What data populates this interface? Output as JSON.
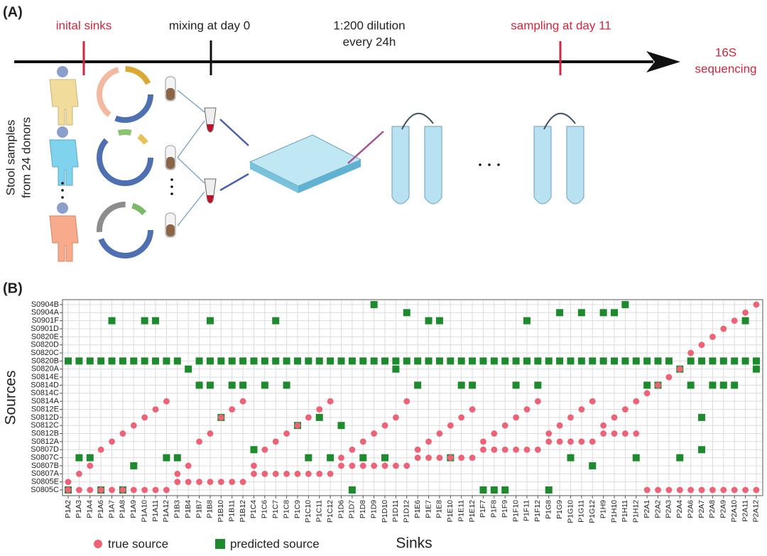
{
  "panel_a": {
    "label": "(A)",
    "steps": [
      "inital sinks",
      "mixing at day 0",
      "1:200 dilution",
      "every 24h",
      "sampling at day 11"
    ],
    "end": [
      "16S",
      "sequencing"
    ],
    "side": [
      "Stool samples",
      "from 24 donors"
    ]
  },
  "chart_data": {
    "type": "scatter",
    "label": "(B)",
    "x_label": "Sinks",
    "y_label": "Sources",
    "grid": true,
    "legend": "bottom",
    "categories": [
      "P1A2",
      "P1A3",
      "P1A4",
      "P1A6",
      "P1A7",
      "P1A8",
      "P1A9",
      "P1A10",
      "P1A11",
      "P1A12",
      "P1B3",
      "P1B4",
      "P1B7",
      "P1B8",
      "P1B10",
      "P1B11",
      "P1B12",
      "P1C4",
      "P1C6",
      "P1C7",
      "P1C8",
      "P1C9",
      "P1C10",
      "P1C11",
      "P1C12",
      "P1D6",
      "P1D7",
      "P1D8",
      "P1D9",
      "P1D10",
      "P1D11",
      "P1D12",
      "P1E6",
      "P1E7",
      "P1E8",
      "P1E10",
      "P1E11",
      "P1E12",
      "P1F7",
      "P1F8",
      "P1F9",
      "P1F10",
      "P1F11",
      "P1F12",
      "P1G8",
      "P1G9",
      "P1G10",
      "P1G11",
      "P1G12",
      "P1H9",
      "P1H10",
      "P1H11",
      "P1H12",
      "P2A1",
      "P2A2",
      "P2A3",
      "P2A4",
      "P2A6",
      "P2A7",
      "P2A8",
      "P2A9",
      "P2A10",
      "P2A11",
      "P2A12"
    ],
    "y_categories": [
      "S0805C",
      "S0805E",
      "S0807A",
      "S0807B",
      "S0807C",
      "S0807D",
      "S0812A",
      "S0812B",
      "S0812C",
      "S0812D",
      "S0812E",
      "S0814A",
      "S0814C",
      "S0814D",
      "S0814E",
      "S0820A",
      "S0820B",
      "S0820C",
      "S0820D",
      "S0820E",
      "S0901D",
      "S0901F",
      "S0904A",
      "S0904B"
    ],
    "series": [
      {
        "name": "true source",
        "color": "#ec6378",
        "marker": "circle",
        "values": [
          [
            "S0805C",
            "S0805E"
          ],
          [
            "S0805C",
            "S0807A"
          ],
          [
            "S0805C",
            "S0807B"
          ],
          [
            "S0805C",
            "S0807D"
          ],
          [
            "S0805C",
            "S0812A"
          ],
          [
            "S0805C",
            "S0812B"
          ],
          [
            "S0805C",
            "S0812C"
          ],
          [
            "S0805C",
            "S0812D"
          ],
          [
            "S0805C",
            "S0812E"
          ],
          [
            "S0805C",
            "S0814A"
          ],
          [
            "S0805E",
            "S0807A"
          ],
          [
            "S0805E",
            "S0807B"
          ],
          [
            "S0805E",
            "S0812A"
          ],
          [
            "S0805E",
            "S0812B"
          ],
          [
            "S0805E",
            "S0812D"
          ],
          [
            "S0805E",
            "S0812E"
          ],
          [
            "S0805E",
            "S0814A"
          ],
          [
            "S0807A",
            "S0807B"
          ],
          [
            "S0807A",
            "S0807D"
          ],
          [
            "S0807A",
            "S0812A"
          ],
          [
            "S0807A",
            "S0812B"
          ],
          [
            "S0807A",
            "S0812C"
          ],
          [
            "S0807A",
            "S0812D"
          ],
          [
            "S0807A",
            "S0812E"
          ],
          [
            "S0807A",
            "S0814A"
          ],
          [
            "S0807B",
            "S0807C"
          ],
          [
            "S0807B",
            "S0807D"
          ],
          [
            "S0807B",
            "S0812A"
          ],
          [
            "S0807B",
            "S0812B"
          ],
          [
            "S0807B",
            "S0812C"
          ],
          [
            "S0807B",
            "S0812D"
          ],
          [
            "S0807B",
            "S0814A"
          ],
          [
            "S0807C",
            "S0807D"
          ],
          [
            "S0807C",
            "S0812A"
          ],
          [
            "S0807C",
            "S0812B"
          ],
          [
            "S0807C",
            "S0812C"
          ],
          [
            "S0807C",
            "S0812D"
          ],
          [
            "S0807C",
            "S0812E"
          ],
          [
            "S0807D",
            "S0812A"
          ],
          [
            "S0807D",
            "S0812B"
          ],
          [
            "S0807D",
            "S0812C"
          ],
          [
            "S0807D",
            "S0812D"
          ],
          [
            "S0807D",
            "S0812E"
          ],
          [
            "S0807D",
            "S0814A"
          ],
          [
            "S0812A",
            "S0812B"
          ],
          [
            "S0812A",
            "S0812C"
          ],
          [
            "S0812A",
            "S0812D"
          ],
          [
            "S0812A",
            "S0812E"
          ],
          [
            "S0812A",
            "S0814A"
          ],
          [
            "S0812B",
            "S0812C"
          ],
          [
            "S0812B",
            "S0812D"
          ],
          [
            "S0812B",
            "S0812E"
          ],
          [
            "S0812B",
            "S0814A"
          ],
          [
            "S0805C",
            "S0814C"
          ],
          [
            "S0805C",
            "S0814D"
          ],
          [
            "S0805C",
            "S0814E"
          ],
          [
            "S0805C",
            "S0820A"
          ],
          [
            "S0805C",
            "S0820C"
          ],
          [
            "S0805C",
            "S0820D"
          ],
          [
            "S0805C",
            "S0820E"
          ],
          [
            "S0805C",
            "S0901D"
          ],
          [
            "S0805C",
            "S0901F"
          ],
          [
            "S0805C",
            "S0904A"
          ],
          [
            "S0805C",
            "S0904B"
          ]
        ]
      },
      {
        "name": "predicted source",
        "color": "#1e8a2e",
        "marker": "square",
        "values": [
          [
            "S0805C",
            "S0820B"
          ],
          [
            "S0807C",
            "S0820B"
          ],
          [
            "S0807C",
            "S0820B"
          ],
          [
            "S0805C",
            "S0820B"
          ],
          [
            "S0901F",
            "S0820B"
          ],
          [
            "S0805C",
            "S0820B"
          ],
          [
            "S0807B",
            "S0820B"
          ],
          [
            "S0901F",
            "S0820B"
          ],
          [
            "S0901F",
            "S0820B"
          ],
          [
            "S0807C",
            "S0820B"
          ],
          [
            "S0807C",
            "S0820B"
          ],
          [
            "S0820A"
          ],
          [
            "S0814D",
            "S0820B"
          ],
          [
            "S0901F",
            "S0814D",
            "S0820B"
          ],
          [
            "S0812D",
            "S0820B"
          ],
          [
            "S0814D",
            "S0820B"
          ],
          [
            "S0814D",
            "S0820B"
          ],
          [
            "S0807D",
            "S0820B"
          ],
          [
            "S0814D",
            "S0820B"
          ],
          [
            "S0901F",
            "S0820B"
          ],
          [
            "S0814D",
            "S0820B"
          ],
          [
            "S0812C",
            "S0820B"
          ],
          [
            "S0807C",
            "S0820B"
          ],
          [
            "S0812D",
            "S0820B"
          ],
          [
            "S0807C",
            "S0820B"
          ],
          [
            "S0812C",
            "S0820B"
          ],
          [
            "S0805C",
            "S0820B"
          ],
          [
            "S0807C",
            "S0820B"
          ],
          [
            "S0904B",
            "S0820B"
          ],
          [
            "S0807C",
            "S0820B"
          ],
          [
            "S0820A",
            "S0820B"
          ],
          [
            "S0904A",
            "S0820B"
          ],
          [
            "S0814D",
            "S0820B"
          ],
          [
            "S0901F",
            "S0820B"
          ],
          [
            "S0901F",
            "S0820B"
          ],
          [
            "S0807C",
            "S0820B"
          ],
          [
            "S0814D",
            "S0820B"
          ],
          [
            "S0814D",
            "S0820B"
          ],
          [
            "S0805C",
            "S0820B"
          ],
          [
            "S0805C",
            "S0820B"
          ],
          [
            "S0805C",
            "S0820B"
          ],
          [
            "S0814D",
            "S0820B"
          ],
          [
            "S0901F",
            "S0820B"
          ],
          [
            "S0814D",
            "S0820B"
          ],
          [
            "S0805C",
            "S0820B"
          ],
          [
            "S0904A",
            "S0820B"
          ],
          [
            "S0807C",
            "S0820B"
          ],
          [
            "S0904A",
            "S0820B"
          ],
          [
            "S0807B",
            "S0820B"
          ],
          [
            "S0904A",
            "S0820B"
          ],
          [
            "S0904A",
            "S0820B"
          ],
          [
            "S0904B",
            "S0820B"
          ],
          [
            "S0807C",
            "S0820B"
          ],
          [
            "S0814D",
            "S0820B"
          ],
          [
            "S0814D",
            "S0820B"
          ],
          [
            "S0820B"
          ],
          [
            "S0820A",
            "S0807C"
          ],
          [
            "S0814D",
            "S0820B"
          ],
          [
            "S0807D",
            "S0812D",
            "S0820B"
          ],
          [
            "S0814D",
            "S0820B"
          ],
          [
            "S0814D",
            "S0820B"
          ],
          [
            "S0814D",
            "S0820B"
          ],
          [
            "S0901F",
            "S0820B"
          ],
          [
            "S0820A",
            "S0820B"
          ]
        ]
      }
    ]
  }
}
